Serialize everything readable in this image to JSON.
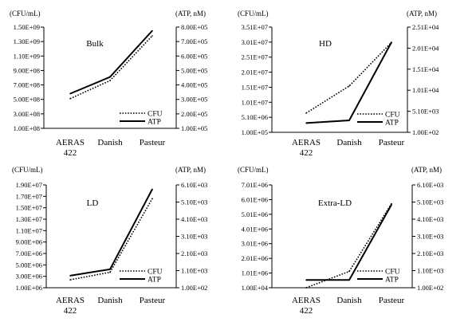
{
  "chart_data": [
    {
      "type": "line",
      "title": "Bulk",
      "categories": [
        "AERAS 422",
        "Danish",
        "Pasteur"
      ],
      "category_lines": [
        [
          "AERAS",
          "422"
        ],
        [
          "Danish"
        ],
        [
          "Pasteur"
        ]
      ],
      "y_left_unit": "(CFU/mL)",
      "y_right_unit": "(ATP, nM)",
      "y_left_ticks": [
        "1.00E+08",
        "3.00E+08",
        "5.00E+08",
        "7.00E+08",
        "9.00E+08",
        "1.10E+09",
        "1.30E+09",
        "1.50E+09"
      ],
      "y_right_ticks": [
        "1.00E+05",
        "2.00E+05",
        "3.00E+05",
        "4.00E+05",
        "5.00E+05",
        "6.00E+05",
        "7.00E+05",
        "8.00E+05"
      ],
      "ylim_left": [
        100000000,
        1500000000
      ],
      "ylim_right": [
        100000,
        800000
      ],
      "series": [
        {
          "name": "CFU",
          "axis": "left",
          "style": "dotted",
          "values": [
            510000000,
            760000000,
            1380000000
          ]
        },
        {
          "name": "ATP",
          "axis": "right",
          "style": "solid",
          "values": [
            340000,
            455000,
            775000
          ]
        }
      ],
      "legend": "bottom-right",
      "grid": false
    },
    {
      "type": "line",
      "title": "HD",
      "categories": [
        "AERAS 422",
        "Danish",
        "Pasteur"
      ],
      "category_lines": [
        [
          "AERAS",
          "422"
        ],
        [
          "Danish"
        ],
        [
          "Pasteur"
        ]
      ],
      "y_left_unit": "(CFU/mL)",
      "y_right_unit": "(ATP, nM)",
      "y_left_ticks": [
        "1.00E+05",
        "5.10E+06",
        "1.01E+07",
        "1.51E+07",
        "2.01E+07",
        "2.51E+07",
        "3.01E+07",
        "3.51E+07"
      ],
      "y_right_ticks": [
        "1.00E+02",
        "5.10E+03",
        "1.01E+04",
        "1.51E+04",
        "2.01E+04",
        "2.51E+04"
      ],
      "ylim_left": [
        100000,
        35100000
      ],
      "ylim_right": [
        100,
        25100
      ],
      "series": [
        {
          "name": "CFU",
          "axis": "left",
          "style": "dotted",
          "values": [
            6500000,
            15500000,
            30000000
          ]
        },
        {
          "name": "ATP",
          "axis": "right",
          "style": "solid",
          "values": [
            2300,
            2950,
            21500
          ]
        }
      ],
      "legend": "bottom-right",
      "grid": false
    },
    {
      "type": "line",
      "title": "LD",
      "categories": [
        "AERAS 422",
        "Danish",
        "Pasteur"
      ],
      "category_lines": [
        [
          "AERAS",
          "422"
        ],
        [
          "Danish"
        ],
        [
          "Pasteur"
        ]
      ],
      "y_left_unit": "(CFU/mL)",
      "y_right_unit": "(ATP, nM)",
      "y_left_ticks": [
        "1.00E+06",
        "3.00E+06",
        "5.00E+06",
        "7.00E+06",
        "9.00E+06",
        "1.10E+07",
        "1.30E+07",
        "1.50E+07",
        "1.70E+07",
        "1.90E+07"
      ],
      "y_right_ticks": [
        "1.00E+02",
        "1.10E+03",
        "2.10E+03",
        "3.10E+03",
        "4.10E+03",
        "5.10E+03",
        "6.10E+03"
      ],
      "ylim_left": [
        1000000,
        19000000
      ],
      "ylim_right": [
        100,
        6100
      ],
      "series": [
        {
          "name": "CFU",
          "axis": "left",
          "style": "dotted",
          "values": [
            2400000,
            3700000,
            16600000
          ]
        },
        {
          "name": "ATP",
          "axis": "right",
          "style": "solid",
          "values": [
            800,
            1180,
            5850
          ]
        }
      ],
      "legend": "bottom-right",
      "grid": false
    },
    {
      "type": "line",
      "title": "Extra-LD",
      "categories": [
        "AERAS 422",
        "Danish",
        "Pasteur"
      ],
      "category_lines": [
        [
          "AERAS",
          "422"
        ],
        [
          "Danish"
        ],
        [
          "Pasteur"
        ]
      ],
      "y_left_unit": "(CFU/mL)",
      "y_right_unit": "(ATP, nM)",
      "y_left_ticks": [
        "1.00E+04",
        "1.01E+06",
        "2.01E+06",
        "3.01E+06",
        "4.01E+06",
        "5.01E+06",
        "6.01E+06",
        "7.01E+06"
      ],
      "y_right_ticks": [
        "1.00E+02",
        "1.10E+03",
        "2.10E+03",
        "3.10E+03",
        "4.10E+03",
        "5.10E+03",
        "6.10E+03"
      ],
      "ylim_left": [
        10000,
        7010000
      ],
      "ylim_right": [
        100,
        6100
      ],
      "series": [
        {
          "name": "CFU",
          "axis": "left",
          "style": "dotted",
          "values": [
            10000,
            1120000,
            5730000
          ]
        },
        {
          "name": "ATP",
          "axis": "right",
          "style": "solid",
          "values": [
            550,
            550,
            4950
          ]
        }
      ],
      "legend": "bottom-right",
      "grid": false
    }
  ]
}
